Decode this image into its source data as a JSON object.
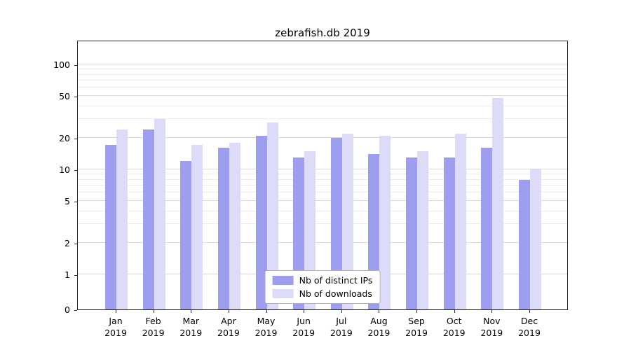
{
  "title": "zebrafish.db 2019",
  "chart_data": {
    "type": "bar",
    "title": "zebrafish.db 2019",
    "yscale": "symlog",
    "ylim": [
      0,
      170
    ],
    "yticks": [
      0,
      1,
      2,
      5,
      10,
      20,
      50,
      100
    ],
    "grid": true,
    "legend_position": "lower center",
    "months": [
      "Jan",
      "Feb",
      "Mar",
      "Apr",
      "May",
      "Jun",
      "Jul",
      "Aug",
      "Sep",
      "Oct",
      "Nov",
      "Dec"
    ],
    "year": "2019",
    "series": [
      {
        "name": "Nb of distinct IPs",
        "color": "#9e9ef0",
        "values": [
          17,
          24,
          12,
          16,
          21,
          13,
          20,
          14,
          13,
          13,
          16,
          8
        ]
      },
      {
        "name": "Nb of downloads",
        "color": "#dcdcf8",
        "values": [
          24,
          30,
          17,
          18,
          28,
          15,
          22,
          21,
          15,
          22,
          48,
          10
        ]
      }
    ]
  }
}
